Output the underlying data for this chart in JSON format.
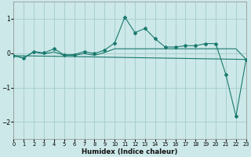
{
  "xlabel": "Humidex (Indice chaleur)",
  "bg_color": "#cce8e8",
  "grid_color": "#a8d0d0",
  "line_color": "#1a7a6e",
  "xlim": [
    0,
    23
  ],
  "ylim": [
    -2.5,
    1.5
  ],
  "xticks": [
    0,
    1,
    2,
    3,
    4,
    5,
    6,
    7,
    8,
    9,
    10,
    11,
    12,
    13,
    14,
    15,
    16,
    17,
    18,
    19,
    20,
    21,
    22,
    23
  ],
  "yticks": [
    -2,
    -1,
    0,
    1
  ],
  "series1_x": [
    0,
    1,
    2,
    3,
    4,
    5,
    6,
    7,
    8,
    9,
    10,
    11,
    12,
    13,
    14,
    15,
    16,
    17,
    18,
    19,
    20,
    21,
    22,
    23
  ],
  "series1_y": [
    -0.07,
    -0.14,
    0.05,
    0.01,
    0.13,
    -0.05,
    -0.04,
    0.05,
    -0.01,
    0.09,
    0.3,
    1.05,
    0.6,
    0.72,
    0.42,
    0.18,
    0.18,
    0.22,
    0.22,
    0.28,
    0.28,
    -0.62,
    -1.83,
    -0.18
  ],
  "series2_x": [
    0,
    1,
    2,
    3,
    4,
    5,
    6,
    7,
    8,
    9,
    10,
    11,
    12,
    13,
    14,
    15,
    16,
    17,
    18,
    19,
    20,
    21,
    22,
    23
  ],
  "series2_y": [
    -0.07,
    -0.14,
    0.04,
    -0.02,
    0.04,
    -0.06,
    -0.06,
    -0.01,
    -0.06,
    0.02,
    0.13,
    0.13,
    0.13,
    0.13,
    0.13,
    0.13,
    0.13,
    0.13,
    0.13,
    0.13,
    0.13,
    0.13,
    0.13,
    -0.18
  ],
  "series3_x": [
    0,
    23
  ],
  "series3_y": [
    -0.07,
    -0.18
  ]
}
